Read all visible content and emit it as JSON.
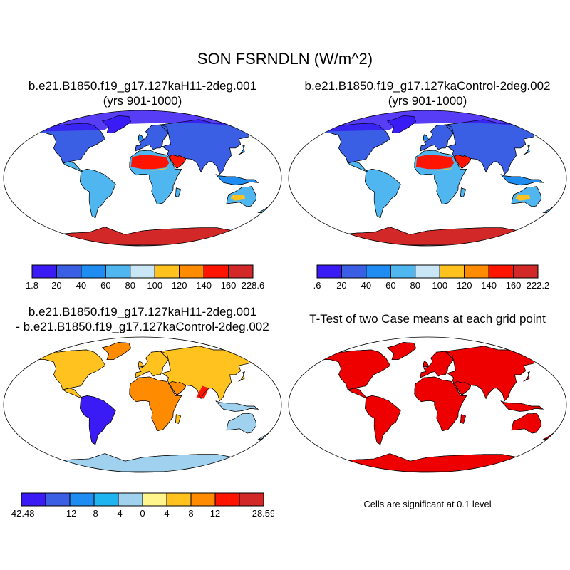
{
  "title": "SON FSRNDLN (W/m^2)",
  "panels": [
    {
      "line1": "b.e21.B1850.f19_g17.127kaH11-2deg.001",
      "line2": "(yrs 901-1000)"
    },
    {
      "line1": "b.e21.B1850.f19_g17.127kaControl-2deg.002",
      "line2": "(yrs 901-1000)"
    },
    {
      "line1": "b.e21.B1850.f19_g17.127kaH11-2deg.001",
      "line2": "- b.e21.B1850.f19_g17.127kaControl-2deg.002"
    },
    {
      "line1": "T-Test of two Case means at each grid point",
      "line2": ""
    }
  ],
  "colorbars": [
    {
      "labels": [
        "1.8",
        "20",
        "40",
        "60",
        "80",
        "100",
        "120",
        "140",
        "160",
        "228.6"
      ],
      "colors": [
        "#3a1bf5",
        "#3a5ee4",
        "#1e8cf0",
        "#4fb6f0",
        "#c8e6f5",
        "#ffc21e",
        "#ff8c00",
        "#ff1400",
        "#d22828"
      ]
    },
    {
      "labels": [
        ".6",
        "20",
        "40",
        "60",
        "80",
        "100",
        "120",
        "140",
        "160",
        "222.2"
      ],
      "colors": [
        "#3a1bf5",
        "#3a5ee4",
        "#1e8cf0",
        "#4fb6f0",
        "#c8e6f5",
        "#ffc21e",
        "#ff8c00",
        "#ff1400",
        "#d22828"
      ]
    },
    {
      "labels": [
        "-42.48",
        "-12",
        "-8",
        "-4",
        "0",
        "4",
        "8",
        "12",
        "28.59"
      ],
      "colors": [
        "#3a1bf5",
        "#3a5ee4",
        "#1e8cf0",
        "#1eb4f0",
        "#a0d2f0",
        "#fff58c",
        "#ffc21e",
        "#ff8c00",
        "#ff1400",
        "#d22828"
      ]
    }
  ],
  "note": "Cells are significant at 0.1 level",
  "map_colors": {
    "ice": "#3a1bf5",
    "boreal": "#3a5ee4",
    "temperate": "#4fb6f0",
    "tropical": "#1e8cf0",
    "desert": "#ff1400",
    "desert_edge": "#ffc21e",
    "antarctica": "#d22828",
    "diff_warm": "#ffc21e",
    "diff_hot": "#ff8c00",
    "diff_cool": "#a0d2f0",
    "diff_cold": "#3a1bf5",
    "signif": "#ee0000"
  }
}
